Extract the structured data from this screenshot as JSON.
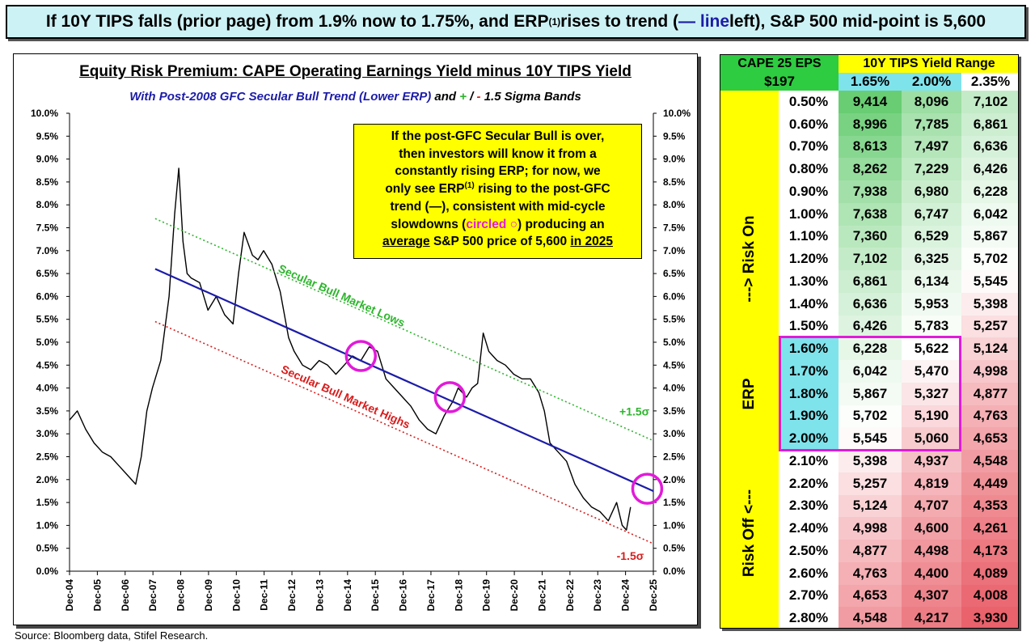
{
  "headline": {
    "part1": "If 10Y TIPS falls (prior page) from 1.9% now to 1.75%, and ERP",
    "sup": "(1)",
    "part2": " rises to trend (",
    "line_word": "— line",
    "part3": " left), S&P 500 mid-point is 5,600"
  },
  "chart_data": {
    "type": "line",
    "title": "Equity Risk Premium: CAPE Operating Earnings Yield minus 10Y TIPS Yield",
    "subtitle": {
      "part1": "With Post-2008 GFC Secular Bull Trend (Lower ERP)",
      "part2": " and ",
      "plus": "+",
      "slash": " / ",
      "minus": "-",
      "part3": " 1.5 Sigma Bands"
    },
    "y_ticks": [
      "0.0%",
      "0.5%",
      "1.0%",
      "1.5%",
      "2.0%",
      "2.5%",
      "3.0%",
      "3.5%",
      "4.0%",
      "4.5%",
      "5.0%",
      "5.5%",
      "6.0%",
      "6.5%",
      "7.0%",
      "7.5%",
      "8.0%",
      "8.5%",
      "9.0%",
      "9.5%",
      "10.0%"
    ],
    "ylim": [
      0,
      10
    ],
    "x_ticks": [
      "Dec-04",
      "Dec-05",
      "Dec-06",
      "Dec-07",
      "Dec-08",
      "Dec-09",
      "Dec-10",
      "Dec-11",
      "Dec-12",
      "Dec-13",
      "Dec-14",
      "Dec-15",
      "Dec-16",
      "Dec-17",
      "Dec-18",
      "Dec-19",
      "Dec-20",
      "Dec-21",
      "Dec-22",
      "Dec-23",
      "Dec-24",
      "Dec-25"
    ],
    "xlim": [
      2004.92,
      2025.92
    ],
    "series": [
      {
        "name": "ERP",
        "color": "#000000",
        "x": [
          2004.92,
          2005.2,
          2005.5,
          2005.8,
          2006.1,
          2006.4,
          2006.7,
          2007.0,
          2007.3,
          2007.5,
          2007.7,
          2007.9,
          2008.2,
          2008.5,
          2008.7,
          2008.85,
          2009.0,
          2009.15,
          2009.3,
          2009.6,
          2009.9,
          2010.2,
          2010.5,
          2010.8,
          2011.0,
          2011.2,
          2011.5,
          2011.7,
          2011.9,
          2012.2,
          2012.5,
          2012.8,
          2013.0,
          2013.3,
          2013.6,
          2013.9,
          2014.2,
          2014.5,
          2014.8,
          2015.1,
          2015.4,
          2015.7,
          2016.0,
          2016.3,
          2016.6,
          2016.9,
          2017.2,
          2017.5,
          2017.8,
          2018.1,
          2018.4,
          2018.7,
          2018.9,
          2019.2,
          2019.4,
          2019.6,
          2019.8,
          2020.0,
          2020.15,
          2020.3,
          2020.6,
          2020.9,
          2021.2,
          2021.5,
          2021.8,
          2022.0,
          2022.2,
          2022.5,
          2022.8,
          2023.1,
          2023.4,
          2023.7,
          2024.0,
          2024.3,
          2024.6,
          2024.8,
          2024.95,
          2025.1
        ],
        "y": [
          3.3,
          3.5,
          3.1,
          2.8,
          2.6,
          2.5,
          2.3,
          2.1,
          1.9,
          2.5,
          3.5,
          4.0,
          4.6,
          6.0,
          7.8,
          8.8,
          7.2,
          6.5,
          6.4,
          6.3,
          5.7,
          6.0,
          5.6,
          5.4,
          6.5,
          7.4,
          6.9,
          6.8,
          7.0,
          6.7,
          6.1,
          5.1,
          4.8,
          4.5,
          4.4,
          4.6,
          4.5,
          4.3,
          4.5,
          4.7,
          4.6,
          4.9,
          4.8,
          4.2,
          4.0,
          3.8,
          3.6,
          3.3,
          3.1,
          3.0,
          3.4,
          3.7,
          4.0,
          3.8,
          4.0,
          4.1,
          5.2,
          4.8,
          4.7,
          4.6,
          4.5,
          4.3,
          4.2,
          4.2,
          3.9,
          3.5,
          2.8,
          2.6,
          2.4,
          1.9,
          1.6,
          1.4,
          1.3,
          1.1,
          1.5,
          1.0,
          0.9,
          1.4
        ]
      },
      {
        "name": "Post-GFC Secular Bull Trend",
        "color": "#1c1ca8",
        "x": [
          2008.0,
          2025.92
        ],
        "y": [
          6.6,
          1.75
        ]
      },
      {
        "name": "+1.5 sigma (Secular Bull Market Lows)",
        "color": "#2db52d",
        "x": [
          2008.0,
          2025.92
        ],
        "y": [
          7.7,
          2.85
        ]
      },
      {
        "name": "-1.5 sigma (Secular Bull Market Highs)",
        "color": "#d91c1c",
        "x": [
          2008.0,
          2025.92
        ],
        "y": [
          5.45,
          0.6
        ]
      }
    ],
    "circles": [
      {
        "x": 2015.4,
        "y": 4.7
      },
      {
        "x": 2018.6,
        "y": 3.8
      },
      {
        "x": 2025.7,
        "y": 1.8
      }
    ],
    "annotations": {
      "lows_label": "Secular Bull Market Lows",
      "highs_label": "Secular Bull Market Highs",
      "plus_sigma": "+1.5σ",
      "minus_sigma": "-1.5σ"
    },
    "note": {
      "line1": "If the post-GFC Secular Bull is over,",
      "line2": "then investors will know it from a",
      "line3": "constantly rising ERP; for now, we",
      "line4a": "only see ERP",
      "line4sup": "(1)",
      "line4b": " rising to the post-GFC",
      "line5": "trend (—), consistent with mid-cycle",
      "line6a": "slowdowns (",
      "line6b": "circled ",
      "line6circle": "○",
      "line6c": ") producing an",
      "line7a": "average",
      "line7b": " S&P 500 price of 5,600 ",
      "line7c": "in 2025"
    }
  },
  "source": "Source: Bloomberg data, Stifel Research.",
  "table": {
    "cape_label": "CAPE 25 EPS",
    "eps": "$197",
    "range_label": "10Y TIPS Yield Range",
    "tips": [
      "1.65%",
      "2.00%",
      "2.35%"
    ],
    "risk_on": "---> Risk On",
    "erp_label": "ERP",
    "risk_off": "Risk Off <---",
    "rows": [
      {
        "erp": "0.50%",
        "v": [
          "9,414",
          "8,096",
          "7,102"
        ]
      },
      {
        "erp": "0.60%",
        "v": [
          "8,996",
          "7,785",
          "6,861"
        ]
      },
      {
        "erp": "0.70%",
        "v": [
          "8,613",
          "7,497",
          "6,636"
        ]
      },
      {
        "erp": "0.80%",
        "v": [
          "8,262",
          "7,229",
          "6,426"
        ]
      },
      {
        "erp": "0.90%",
        "v": [
          "7,938",
          "6,980",
          "6,228"
        ]
      },
      {
        "erp": "1.00%",
        "v": [
          "7,638",
          "6,747",
          "6,042"
        ]
      },
      {
        "erp": "1.10%",
        "v": [
          "7,360",
          "6,529",
          "5,867"
        ]
      },
      {
        "erp": "1.20%",
        "v": [
          "7,102",
          "6,325",
          "5,702"
        ]
      },
      {
        "erp": "1.30%",
        "v": [
          "6,861",
          "6,134",
          "5,545"
        ]
      },
      {
        "erp": "1.40%",
        "v": [
          "6,636",
          "5,953",
          "5,398"
        ]
      },
      {
        "erp": "1.50%",
        "v": [
          "6,426",
          "5,783",
          "5,257"
        ]
      },
      {
        "erp": "1.60%",
        "v": [
          "6,228",
          "5,622",
          "5,124"
        ]
      },
      {
        "erp": "1.70%",
        "v": [
          "6,042",
          "5,470",
          "4,998"
        ]
      },
      {
        "erp": "1.80%",
        "v": [
          "5,867",
          "5,327",
          "4,877"
        ]
      },
      {
        "erp": "1.90%",
        "v": [
          "5,702",
          "5,190",
          "4,763"
        ]
      },
      {
        "erp": "2.00%",
        "v": [
          "5,545",
          "5,060",
          "4,653"
        ]
      },
      {
        "erp": "2.10%",
        "v": [
          "5,398",
          "4,937",
          "4,548"
        ]
      },
      {
        "erp": "2.20%",
        "v": [
          "5,257",
          "4,819",
          "4,449"
        ]
      },
      {
        "erp": "2.30%",
        "v": [
          "5,124",
          "4,707",
          "4,353"
        ]
      },
      {
        "erp": "2.40%",
        "v": [
          "4,998",
          "4,600",
          "4,261"
        ]
      },
      {
        "erp": "2.50%",
        "v": [
          "4,877",
          "4,498",
          "4,173"
        ]
      },
      {
        "erp": "2.60%",
        "v": [
          "4,763",
          "4,400",
          "4,089"
        ]
      },
      {
        "erp": "2.70%",
        "v": [
          "4,653",
          "4,307",
          "4,008"
        ]
      },
      {
        "erp": "2.80%",
        "v": [
          "4,548",
          "4,217",
          "3,930"
        ]
      }
    ],
    "highlight_rows": [
      "1.60%",
      "2.00%"
    ]
  },
  "colors": {
    "headline_bg": "#cdf2f5",
    "note_bg": "#ffff00",
    "circle": "#e21ad9",
    "yellow": "#ffff00",
    "green": "#2ecc40",
    "cyan": "#7fe3ec",
    "trend": "#1c1ca8",
    "upper": "#2db52d",
    "lower": "#d91c1c"
  }
}
